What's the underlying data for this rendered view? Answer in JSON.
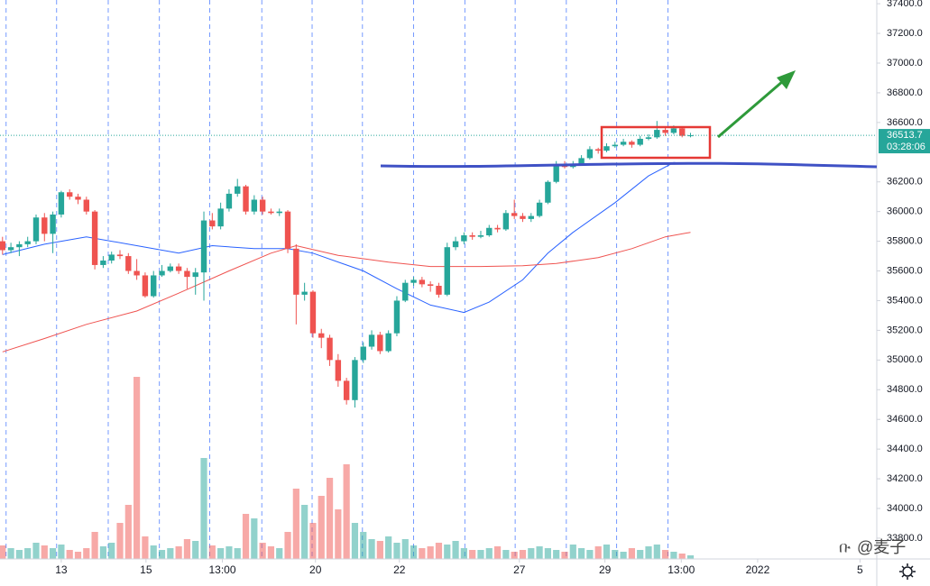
{
  "chart_data": {
    "type": "candlestick",
    "up_color": "#26a69a",
    "down_color": "#ef5350",
    "xlim": [
      -0.3,
      104.2
    ],
    "ylim": [
      33660,
      37425
    ],
    "vlim": [
      0,
      620
    ],
    "xticks": [
      {
        "value": 7,
        "label": "13"
      },
      {
        "value": 17.1,
        "label": "15"
      },
      {
        "value": 26.2,
        "label": "13:00"
      },
      {
        "value": 37.3,
        "label": "20"
      },
      {
        "value": 47.3,
        "label": "22"
      },
      {
        "value": 61.6,
        "label": "27"
      },
      {
        "value": 71.8,
        "label": "29"
      },
      {
        "value": 80.9,
        "label": "13:00"
      },
      {
        "value": 90,
        "label": "2022"
      },
      {
        "value": 102.2,
        "label": "5"
      }
    ],
    "xgrid": [
      0.43,
      6.45,
      12.6,
      18.7,
      24.7,
      30.9,
      36.9,
      42.9,
      49.0,
      55.1,
      61.1,
      67.2,
      73.2,
      79.3
    ],
    "yticks": [
      {
        "value": 33800,
        "label": "33800.0"
      },
      {
        "value": 34000,
        "label": "34000.0"
      },
      {
        "value": 34200,
        "label": "34200.0"
      },
      {
        "value": 34400,
        "label": "34400.0"
      },
      {
        "value": 34600,
        "label": "34600.0"
      },
      {
        "value": 34800,
        "label": "34800.0"
      },
      {
        "value": 35000,
        "label": "35000.0"
      },
      {
        "value": 35200,
        "label": "35200.0"
      },
      {
        "value": 35400,
        "label": "35400.0"
      },
      {
        "value": 35600,
        "label": "35600.0"
      },
      {
        "value": 35800,
        "label": "35800.0"
      },
      {
        "value": 36000,
        "label": "36000.0"
      },
      {
        "value": 36200,
        "label": "36200.0"
      },
      {
        "value": 36600,
        "label": "36600.0"
      },
      {
        "value": 36800,
        "label": "36800.0"
      },
      {
        "value": 37000,
        "label": "37000.0"
      },
      {
        "value": 37200,
        "label": "37200.0"
      },
      {
        "value": 37400,
        "label": "37400.0"
      }
    ],
    "candles": [
      [
        35800,
        35830,
        35710,
        35740
      ],
      [
        35740,
        35790,
        35720,
        35760
      ],
      [
        35760,
        35800,
        35700,
        35780
      ],
      [
        35780,
        35830,
        35760,
        35800
      ],
      [
        35800,
        35980,
        35780,
        35960
      ],
      [
        35960,
        35990,
        35800,
        35850
      ],
      [
        35850,
        36000,
        35720,
        35980
      ],
      [
        35980,
        36140,
        35960,
        36130
      ],
      [
        36130,
        36150,
        36080,
        36100
      ],
      [
        36100,
        36120,
        36050,
        36080
      ],
      [
        36080,
        36100,
        35980,
        36000
      ],
      [
        36000,
        36010,
        35610,
        35640
      ],
      [
        35640,
        35700,
        35620,
        35670
      ],
      [
        35670,
        35730,
        35650,
        35710
      ],
      [
        35710,
        35740,
        35680,
        35700
      ],
      [
        35700,
        35720,
        35580,
        35600
      ],
      [
        35600,
        35680,
        35540,
        35570
      ],
      [
        35570,
        35590,
        35420,
        35430
      ],
      [
        35430,
        35600,
        35420,
        35570
      ],
      [
        35570,
        35640,
        35560,
        35600
      ],
      [
        35600,
        35650,
        35590,
        35630
      ],
      [
        35630,
        35650,
        35580,
        35600
      ],
      [
        35600,
        35620,
        35480,
        35560
      ],
      [
        35560,
        35620,
        35440,
        35590
      ],
      [
        35590,
        36000,
        35400,
        35940
      ],
      [
        35940,
        35990,
        35880,
        35900
      ],
      [
        35900,
        36060,
        35880,
        36020
      ],
      [
        36020,
        36150,
        36000,
        36120
      ],
      [
        36120,
        36220,
        36100,
        36170
      ],
      [
        36170,
        36180,
        35980,
        36000
      ],
      [
        36000,
        36110,
        35980,
        36080
      ],
      [
        36080,
        36100,
        35980,
        36000
      ],
      [
        36000,
        36020,
        35980,
        35990
      ],
      [
        35990,
        36020,
        35970,
        36000
      ],
      [
        36000,
        36010,
        35720,
        35750
      ],
      [
        35750,
        35780,
        35240,
        35440
      ],
      [
        35440,
        35520,
        35400,
        35460
      ],
      [
        35460,
        35470,
        35150,
        35180
      ],
      [
        35180,
        35210,
        35080,
        35150
      ],
      [
        35150,
        35170,
        34960,
        35000
      ],
      [
        35000,
        35040,
        34820,
        34860
      ],
      [
        34860,
        34880,
        34700,
        34730
      ],
      [
        34730,
        35020,
        34680,
        35000
      ],
      [
        35000,
        35120,
        34980,
        35090
      ],
      [
        35090,
        35200,
        35070,
        35170
      ],
      [
        35170,
        35190,
        35040,
        35060
      ],
      [
        35060,
        35200,
        35050,
        35180
      ],
      [
        35180,
        35430,
        35160,
        35400
      ],
      [
        35400,
        35540,
        35390,
        35520
      ],
      [
        35520,
        35560,
        35500,
        35540
      ],
      [
        35540,
        35560,
        35490,
        35510
      ],
      [
        35510,
        35530,
        35460,
        35500
      ],
      [
        35500,
        35520,
        35420,
        35440
      ],
      [
        35440,
        35790,
        35430,
        35760
      ],
      [
        35760,
        35830,
        35740,
        35800
      ],
      [
        35800,
        35860,
        35780,
        35840
      ],
      [
        35840,
        35860,
        35810,
        35830
      ],
      [
        35830,
        35870,
        35820,
        35840
      ],
      [
        35840,
        35910,
        35830,
        35890
      ],
      [
        35890,
        35910,
        35860,
        35880
      ],
      [
        35880,
        36010,
        35870,
        35990
      ],
      [
        35990,
        36080,
        35950,
        35970
      ],
      [
        35970,
        35990,
        35930,
        35950
      ],
      [
        35950,
        35990,
        35930,
        35970
      ],
      [
        35970,
        36080,
        35960,
        36060
      ],
      [
        36060,
        36210,
        36050,
        36200
      ],
      [
        36200,
        36340,
        36190,
        36320
      ],
      [
        36320,
        36340,
        36290,
        36300
      ],
      [
        36300,
        36340,
        36290,
        36320
      ],
      [
        36320,
        36380,
        36310,
        36360
      ],
      [
        36360,
        36440,
        36350,
        36420
      ],
      [
        36420,
        36430,
        36390,
        36410
      ],
      [
        36410,
        36460,
        36400,
        36440
      ],
      [
        36440,
        36470,
        36430,
        36450
      ],
      [
        36450,
        36490,
        36440,
        36470
      ],
      [
        36470,
        36480,
        36430,
        36450
      ],
      [
        36450,
        36510,
        36440,
        36490
      ],
      [
        36490,
        36520,
        36480,
        36500
      ],
      [
        36500,
        36610,
        36490,
        36550
      ],
      [
        36550,
        36570,
        36510,
        36530
      ],
      [
        36530,
        36580,
        36520,
        36560
      ],
      [
        36560,
        36570,
        36500,
        36510
      ],
      [
        36510,
        36530,
        36500,
        36513.7
      ]
    ],
    "volume": [
      15,
      12,
      10,
      12,
      18,
      15,
      12,
      16,
      10,
      8,
      12,
      30,
      14,
      18,
      40,
      60,
      202,
      25,
      15,
      10,
      12,
      14,
      22,
      20,
      112,
      15,
      12,
      14,
      12,
      50,
      45,
      18,
      14,
      12,
      30,
      78,
      60,
      40,
      70,
      90,
      55,
      105,
      40,
      30,
      22,
      20,
      25,
      18,
      22,
      15,
      12,
      14,
      18,
      16,
      20,
      12,
      10,
      10,
      12,
      14,
      10,
      8,
      10,
      12,
      14,
      12,
      10,
      8,
      16,
      12,
      10,
      14,
      16,
      10,
      8,
      12,
      10,
      14,
      16,
      10,
      8,
      6,
      4
    ],
    "series": [
      {
        "color": "#2962ff",
        "x": [
          0,
          5,
          10,
          16,
          21,
          25,
          30,
          34,
          37,
          43,
          47,
          51,
          55,
          58,
          62,
          65,
          68,
          73,
          77,
          80,
          82
        ],
        "values": [
          35710,
          35780,
          35830,
          35770,
          35720,
          35770,
          35750,
          35750,
          35720,
          35600,
          35480,
          35370,
          35320,
          35390,
          35540,
          35720,
          35860,
          36060,
          36240,
          36330,
          36320
        ]
      },
      {
        "color": "#ef5350",
        "x": [
          0,
          5,
          10,
          16,
          21,
          27,
          32,
          35,
          40,
          46,
          51,
          57,
          62,
          66,
          71,
          75,
          79,
          82
        ],
        "values": [
          35055,
          35145,
          35240,
          35330,
          35450,
          35600,
          35720,
          35770,
          35705,
          35660,
          35630,
          35630,
          35635,
          35650,
          35690,
          35750,
          35830,
          35860
        ]
      }
    ],
    "last_price": 36513.7,
    "countdown": "03:28:06",
    "watermark": "@麦子"
  }
}
